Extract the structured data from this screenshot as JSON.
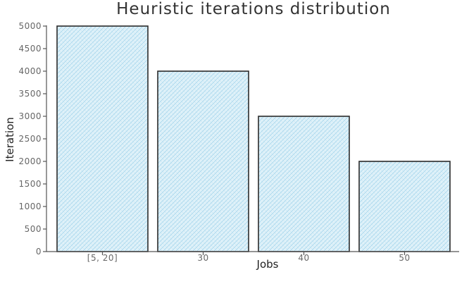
{
  "chart_data": {
    "type": "bar",
    "title": "Heuristic iterations distribution",
    "xlabel": "Jobs",
    "ylabel": "Iteration",
    "categories": [
      "[5, 20]",
      "30",
      "40",
      "50"
    ],
    "values": [
      5000,
      4000,
      3000,
      2000
    ],
    "ylim": [
      0,
      5000
    ],
    "yticks": [
      0,
      500,
      1000,
      1500,
      2000,
      2500,
      3000,
      3500,
      4000,
      4500,
      5000
    ],
    "grid": false,
    "bar_fill": "#dff1f9",
    "hatch_color": "#9fd3ea",
    "edge_color": "#2b2b2b"
  }
}
